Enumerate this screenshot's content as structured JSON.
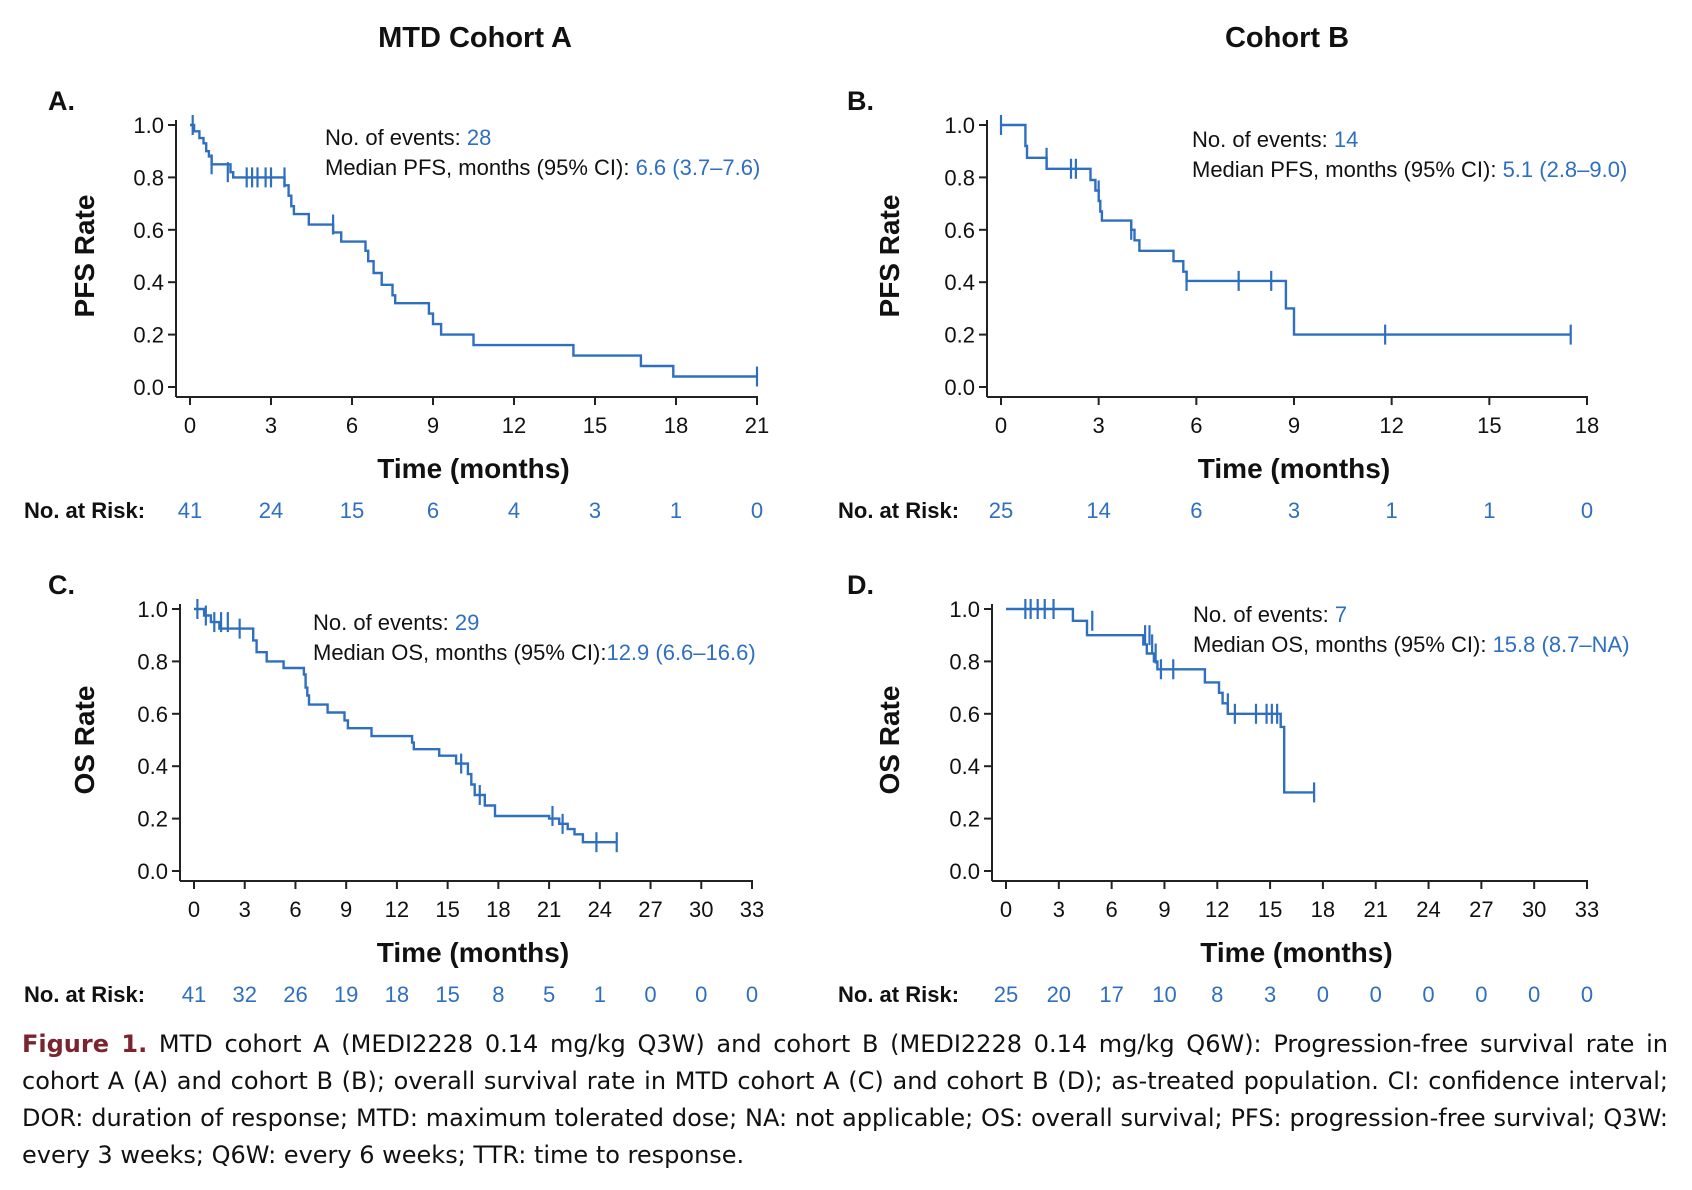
{
  "colors": {
    "curve": "#2f6fc0",
    "value_text": "#2f6fc0",
    "axis": "#222222",
    "caption_label": "#7b2430"
  },
  "column_titles": [
    "MTD Cohort A",
    "Cohort B"
  ],
  "at_risk_label": "No. at Risk:",
  "panels": [
    {
      "id": "A",
      "panel_label": "A.",
      "ylabel": "PFS Rate",
      "xlabel": "Time (months)",
      "stat_lines": [
        {
          "label": "No. of events: ",
          "value": "28"
        },
        {
          "label": "Median PFS, months (95% CI): ",
          "value": "6.6 (3.7–7.6)"
        }
      ],
      "at_risk": [
        "41",
        "24",
        "15",
        "6",
        "4",
        "3",
        "1",
        "0"
      ]
    },
    {
      "id": "B",
      "panel_label": "B.",
      "ylabel": "PFS Rate",
      "xlabel": "Time (months)",
      "stat_lines": [
        {
          "label": "No. of events: ",
          "value": "14"
        },
        {
          "label": "Median PFS, months (95% CI): ",
          "value": "5.1 (2.8–9.0)"
        }
      ],
      "at_risk": [
        "25",
        "14",
        "6",
        "3",
        "1",
        "1",
        "0"
      ]
    },
    {
      "id": "C",
      "panel_label": "C.",
      "ylabel": "OS Rate",
      "xlabel": "Time (months)",
      "stat_lines": [
        {
          "label": "No. of events: ",
          "value": "29"
        },
        {
          "label": "Median OS, months (95% CI):",
          "value": "12.9 (6.6–16.6)"
        }
      ],
      "at_risk": [
        "41",
        "32",
        "26",
        "19",
        "18",
        "15",
        "8",
        "5",
        "1",
        "0",
        "0",
        "0"
      ]
    },
    {
      "id": "D",
      "panel_label": "D.",
      "ylabel": "OS Rate",
      "xlabel": "Time (months)",
      "stat_lines": [
        {
          "label": "No. of events: ",
          "value": "7"
        },
        {
          "label": "Median OS, months (95% CI): ",
          "value": "15.8 (8.7–NA)"
        }
      ],
      "at_risk": [
        "25",
        "20",
        "17",
        "10",
        "8",
        "3",
        "0",
        "0",
        "0",
        "0",
        "0",
        "0"
      ]
    }
  ],
  "chart_data": [
    {
      "panel": "A",
      "type": "line",
      "step": "post",
      "xlabel": "Time (months)",
      "ylabel": "PFS Rate",
      "xlim": [
        0,
        21
      ],
      "ylim": [
        0,
        1
      ],
      "xticks": [
        0,
        3,
        6,
        9,
        12,
        15,
        18,
        21
      ],
      "yticks": [
        0.0,
        0.2,
        0.4,
        0.6,
        0.8,
        1.0
      ],
      "steps": [
        [
          0.0,
          1.0
        ],
        [
          0.15,
          0.976
        ],
        [
          0.35,
          0.95
        ],
        [
          0.5,
          0.93
        ],
        [
          0.6,
          0.9
        ],
        [
          0.7,
          0.88
        ],
        [
          0.8,
          0.85
        ],
        [
          1.5,
          0.82
        ],
        [
          1.6,
          0.8
        ],
        [
          3.5,
          0.77
        ],
        [
          3.65,
          0.73
        ],
        [
          3.75,
          0.69
        ],
        [
          3.85,
          0.66
        ],
        [
          4.4,
          0.62
        ],
        [
          5.3,
          0.59
        ],
        [
          5.6,
          0.555
        ],
        [
          6.5,
          0.52
        ],
        [
          6.6,
          0.48
        ],
        [
          6.8,
          0.435
        ],
        [
          7.1,
          0.39
        ],
        [
          7.5,
          0.35
        ],
        [
          7.6,
          0.32
        ],
        [
          8.85,
          0.28
        ],
        [
          9.0,
          0.24
        ],
        [
          9.3,
          0.2
        ],
        [
          10.5,
          0.16
        ],
        [
          14.2,
          0.12
        ],
        [
          16.7,
          0.08
        ],
        [
          17.9,
          0.04
        ],
        [
          21.0,
          0.04
        ]
      ],
      "censored": [
        [
          0.1,
          1.0
        ],
        [
          0.8,
          0.85
        ],
        [
          1.4,
          0.82
        ],
        [
          2.1,
          0.8
        ],
        [
          2.3,
          0.8
        ],
        [
          2.5,
          0.8
        ],
        [
          2.8,
          0.8
        ],
        [
          3.0,
          0.8
        ],
        [
          3.5,
          0.8
        ],
        [
          5.3,
          0.62
        ],
        [
          21.0,
          0.04
        ]
      ]
    },
    {
      "panel": "B",
      "type": "line",
      "step": "post",
      "xlabel": "Time (months)",
      "ylabel": "PFS Rate",
      "xlim": [
        0,
        18
      ],
      "ylim": [
        0,
        1
      ],
      "xticks": [
        0,
        3,
        6,
        9,
        12,
        15,
        18
      ],
      "yticks": [
        0.0,
        0.2,
        0.4,
        0.6,
        0.8,
        1.0
      ],
      "steps": [
        [
          0.0,
          1.0
        ],
        [
          0.75,
          0.92
        ],
        [
          0.8,
          0.875
        ],
        [
          1.4,
          0.833
        ],
        [
          2.75,
          0.79
        ],
        [
          2.9,
          0.75
        ],
        [
          3.0,
          0.71
        ],
        [
          3.05,
          0.67
        ],
        [
          3.1,
          0.635
        ],
        [
          4.0,
          0.6
        ],
        [
          4.1,
          0.56
        ],
        [
          4.25,
          0.52
        ],
        [
          5.3,
          0.48
        ],
        [
          5.6,
          0.44
        ],
        [
          5.7,
          0.405
        ],
        [
          8.75,
          0.3
        ],
        [
          9.0,
          0.2
        ],
        [
          17.5,
          0.2
        ]
      ],
      "censored": [
        [
          0.0,
          1.0
        ],
        [
          1.4,
          0.875
        ],
        [
          2.15,
          0.833
        ],
        [
          2.3,
          0.833
        ],
        [
          3.0,
          0.75
        ],
        [
          4.0,
          0.6
        ],
        [
          5.7,
          0.405
        ],
        [
          7.3,
          0.405
        ],
        [
          8.3,
          0.405
        ],
        [
          11.8,
          0.2
        ],
        [
          17.5,
          0.2
        ]
      ]
    },
    {
      "panel": "C",
      "type": "line",
      "step": "post",
      "xlabel": "Time (months)",
      "ylabel": "OS Rate",
      "xlim": [
        0,
        33
      ],
      "ylim": [
        0,
        1
      ],
      "xticks": [
        0,
        3,
        6,
        9,
        12,
        15,
        18,
        21,
        24,
        27,
        30,
        33
      ],
      "yticks": [
        0.0,
        0.2,
        0.4,
        0.6,
        0.8,
        1.0
      ],
      "steps": [
        [
          0.0,
          1.0
        ],
        [
          0.6,
          0.975
        ],
        [
          1.0,
          0.95
        ],
        [
          1.5,
          0.925
        ],
        [
          3.5,
          0.88
        ],
        [
          3.7,
          0.835
        ],
        [
          4.3,
          0.8
        ],
        [
          5.3,
          0.775
        ],
        [
          6.5,
          0.75
        ],
        [
          6.6,
          0.7
        ],
        [
          6.7,
          0.67
        ],
        [
          6.8,
          0.635
        ],
        [
          7.9,
          0.605
        ],
        [
          8.9,
          0.575
        ],
        [
          9.1,
          0.545
        ],
        [
          10.5,
          0.515
        ],
        [
          12.9,
          0.49
        ],
        [
          13.0,
          0.465
        ],
        [
          14.5,
          0.44
        ],
        [
          15.5,
          0.41
        ],
        [
          16.2,
          0.37
        ],
        [
          16.4,
          0.33
        ],
        [
          16.6,
          0.29
        ],
        [
          17.2,
          0.25
        ],
        [
          17.8,
          0.21
        ],
        [
          21.0,
          0.2
        ],
        [
          21.6,
          0.18
        ],
        [
          22.1,
          0.16
        ],
        [
          22.5,
          0.14
        ],
        [
          23.0,
          0.11
        ],
        [
          25.0,
          0.11
        ]
      ],
      "censored": [
        [
          0.2,
          1.0
        ],
        [
          0.7,
          0.975
        ],
        [
          1.2,
          0.95
        ],
        [
          1.6,
          0.95
        ],
        [
          2.0,
          0.95
        ],
        [
          2.7,
          0.925
        ],
        [
          15.8,
          0.41
        ],
        [
          16.9,
          0.29
        ],
        [
          21.2,
          0.21
        ],
        [
          21.8,
          0.18
        ],
        [
          23.8,
          0.11
        ],
        [
          25.0,
          0.11
        ]
      ]
    },
    {
      "panel": "D",
      "type": "line",
      "step": "post",
      "xlabel": "Time (months)",
      "ylabel": "OS Rate",
      "xlim": [
        0,
        33
      ],
      "ylim": [
        0,
        1
      ],
      "xticks": [
        0,
        3,
        6,
        9,
        12,
        15,
        18,
        21,
        24,
        27,
        30,
        33
      ],
      "yticks": [
        0.0,
        0.2,
        0.4,
        0.6,
        0.8,
        1.0
      ],
      "steps": [
        [
          0.0,
          1.0
        ],
        [
          3.8,
          0.955
        ],
        [
          4.6,
          0.9
        ],
        [
          7.8,
          0.865
        ],
        [
          8.0,
          0.83
        ],
        [
          8.4,
          0.8
        ],
        [
          8.6,
          0.77
        ],
        [
          11.3,
          0.72
        ],
        [
          12.1,
          0.68
        ],
        [
          12.3,
          0.64
        ],
        [
          12.6,
          0.6
        ],
        [
          15.6,
          0.55
        ],
        [
          15.8,
          0.3
        ],
        [
          17.5,
          0.3
        ]
      ],
      "censored": [
        [
          1.1,
          1.0
        ],
        [
          1.4,
          1.0
        ],
        [
          1.8,
          1.0
        ],
        [
          2.2,
          1.0
        ],
        [
          2.7,
          1.0
        ],
        [
          4.9,
          0.955
        ],
        [
          7.9,
          0.9
        ],
        [
          8.15,
          0.9
        ],
        [
          8.3,
          0.865
        ],
        [
          8.5,
          0.83
        ],
        [
          8.8,
          0.77
        ],
        [
          9.5,
          0.77
        ],
        [
          12.6,
          0.64
        ],
        [
          13.0,
          0.6
        ],
        [
          14.2,
          0.6
        ],
        [
          14.8,
          0.6
        ],
        [
          15.1,
          0.6
        ],
        [
          15.4,
          0.6
        ],
        [
          17.5,
          0.3
        ]
      ]
    }
  ],
  "caption": {
    "label": "Figure 1.",
    "text": " MTD cohort A (MEDI2228 0.14 mg/kg Q3W) and cohort B (MEDI2228 0.14 mg/kg Q6W): Progression-free survival rate in cohort A (A) and cohort B (B); overall survival rate in MTD cohort A (C) and cohort B (D); as-treated population. CI: confidence interval; DOR: duration of response; MTD: maximum tolerated dose; NA: not applicable; OS: overall survival; PFS: progression-free survival; Q3W: every 3 weeks; Q6W: every 6 weeks; TTR: time to response."
  }
}
